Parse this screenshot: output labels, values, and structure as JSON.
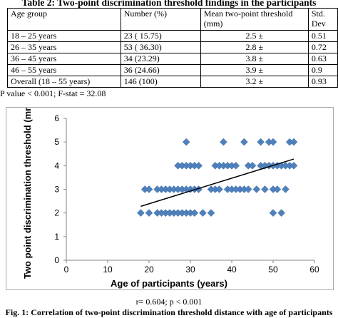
{
  "table": {
    "title": "Table 2: Two-point discrimination threshold findings in the participants",
    "headers": [
      "Age group",
      "Number (%)",
      "Mean  two-point  threshold (mm)",
      "Std. Dev"
    ],
    "rows": [
      [
        "18 – 25 years",
        "23 ( 15.75)",
        "2.5  ±",
        "0.51"
      ],
      [
        "26 – 35 years",
        "53 ( 36.30)",
        "2.8  ±",
        "0.72"
      ],
      [
        "36 – 45 years",
        "34 (23.29)",
        "3.8  ±",
        "0.63"
      ],
      [
        "46 – 55 years",
        "36 (24.66)",
        "3.9  ±",
        "0.9"
      ],
      [
        "Overall (18 – 55 years)",
        "146 (100)",
        "3.2 ±",
        "0.93"
      ]
    ],
    "p_value": "P value < 0.001; F-stat = 32.08"
  },
  "chart_data": {
    "type": "scatter",
    "xlabel": "Age of participants (years)",
    "ylabel": "Two point discrimination threshold (mm)",
    "xlim": [
      0,
      60
    ],
    "ylim": [
      0,
      6
    ],
    "xticks": [
      0,
      10,
      20,
      30,
      40,
      50,
      60
    ],
    "yticks": [
      0,
      1,
      2,
      3,
      4,
      5,
      6
    ],
    "marker_color": "#4f81bd",
    "trendline_color": "#000000",
    "points": [
      [
        18,
        2
      ],
      [
        20,
        2
      ],
      [
        22,
        2
      ],
      [
        23,
        2
      ],
      [
        24,
        2
      ],
      [
        25,
        2
      ],
      [
        26,
        2
      ],
      [
        27,
        2
      ],
      [
        28,
        2
      ],
      [
        29,
        2
      ],
      [
        30,
        2
      ],
      [
        31,
        2
      ],
      [
        33,
        2
      ],
      [
        35,
        2
      ],
      [
        19,
        3
      ],
      [
        20,
        3
      ],
      [
        22,
        3
      ],
      [
        23,
        3
      ],
      [
        24,
        3
      ],
      [
        25,
        3
      ],
      [
        26,
        3
      ],
      [
        27,
        3
      ],
      [
        28,
        3
      ],
      [
        29,
        3
      ],
      [
        30,
        3
      ],
      [
        31,
        3
      ],
      [
        32,
        3
      ],
      [
        35,
        3
      ],
      [
        36,
        3
      ],
      [
        37,
        3
      ],
      [
        39,
        3
      ],
      [
        40,
        3
      ],
      [
        41,
        3
      ],
      [
        42,
        3
      ],
      [
        43,
        3
      ],
      [
        44,
        3
      ],
      [
        46,
        3
      ],
      [
        48,
        3
      ],
      [
        50,
        3
      ],
      [
        51,
        3
      ],
      [
        53,
        3
      ],
      [
        27,
        4
      ],
      [
        28,
        4
      ],
      [
        29,
        4
      ],
      [
        30,
        4
      ],
      [
        31,
        4
      ],
      [
        32,
        4
      ],
      [
        36,
        4
      ],
      [
        37,
        4
      ],
      [
        38,
        4
      ],
      [
        39,
        4
      ],
      [
        40,
        4
      ],
      [
        41,
        4
      ],
      [
        44,
        4
      ],
      [
        45,
        4
      ],
      [
        47,
        4
      ],
      [
        48,
        4
      ],
      [
        49,
        4
      ],
      [
        50,
        4
      ],
      [
        51,
        4
      ],
      [
        52,
        4
      ],
      [
        53,
        4
      ],
      [
        54,
        4
      ],
      [
        55,
        4
      ],
      [
        29,
        5
      ],
      [
        38,
        5
      ],
      [
        43,
        5
      ],
      [
        49,
        5
      ],
      [
        50,
        5
      ],
      [
        54,
        5
      ],
      [
        55,
        5
      ],
      [
        50,
        2
      ],
      [
        52,
        2
      ],
      [
        47,
        5
      ]
    ],
    "trendline": {
      "x": [
        18,
        55
      ],
      "y": [
        2.28,
        4.28
      ]
    }
  },
  "figure": {
    "stats": "r= 0.604; p < 0.001",
    "caption": "Fig. 1: Correlation of two-point discrimination threshold distance with age of participants"
  }
}
